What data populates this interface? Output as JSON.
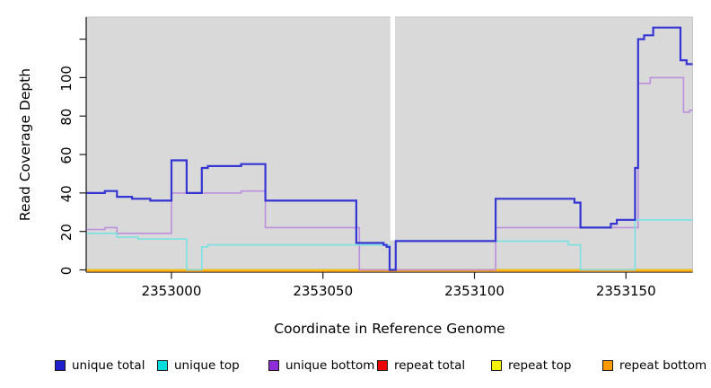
{
  "chart_data": {
    "type": "line",
    "subtype": "step-coverage",
    "title": "",
    "xlabel": "Coordinate in Reference Genome",
    "ylabel": "Read Coverage Depth",
    "xlim": [
      2352972,
      2353172
    ],
    "ylim": [
      0,
      131
    ],
    "grid": false,
    "plot_bg": "#d9d9d9",
    "legend_position": "bottom",
    "no_data_gap": {
      "from": 2353072,
      "to": 2353074
    },
    "xticks": [
      {
        "v": 2353000,
        "label": "2353000"
      },
      {
        "v": 2353050,
        "label": "2353050"
      },
      {
        "v": 2353100,
        "label": "2353100"
      },
      {
        "v": 2353150,
        "label": "2353150"
      }
    ],
    "yticks": [
      {
        "v": 0,
        "label": "0"
      },
      {
        "v": 20,
        "label": "20"
      },
      {
        "v": 40,
        "label": "40"
      },
      {
        "v": 60,
        "label": "60"
      },
      {
        "v": 80,
        "label": "80"
      },
      {
        "v": 100,
        "label": "100"
      },
      {
        "v": 120,
        "label": ""
      }
    ],
    "series": [
      {
        "name": "unique total",
        "line_color": "#3535d3",
        "legend_color": "#1f1fce",
        "line_width": 2.2,
        "points": [
          [
            2352972,
            40
          ],
          [
            2352978,
            41
          ],
          [
            2352982,
            38
          ],
          [
            2352987,
            37
          ],
          [
            2352993,
            36
          ],
          [
            2353000,
            57
          ],
          [
            2353005,
            40
          ],
          [
            2353010,
            53
          ],
          [
            2353012,
            54
          ],
          [
            2353023,
            55
          ],
          [
            2353031,
            36
          ],
          [
            2353061,
            14
          ],
          [
            2353070,
            13
          ],
          [
            2353071,
            12
          ],
          [
            2353072,
            0
          ],
          [
            2353074,
            15
          ],
          [
            2353107,
            37
          ],
          [
            2353133,
            35
          ],
          [
            2353135,
            22
          ],
          [
            2353145,
            24
          ],
          [
            2353147,
            26
          ],
          [
            2353153,
            53
          ],
          [
            2353154,
            120
          ],
          [
            2353156,
            122
          ],
          [
            2353159,
            126
          ],
          [
            2353168,
            109
          ],
          [
            2353170,
            107
          ]
        ]
      },
      {
        "name": "unique top",
        "line_color": "#7ae2e2",
        "legend_color": "#00dcdc",
        "line_width": 1.6,
        "points": [
          [
            2352972,
            19
          ],
          [
            2352982,
            17
          ],
          [
            2352989,
            16
          ],
          [
            2353005,
            0
          ],
          [
            2353010,
            12
          ],
          [
            2353012,
            13
          ],
          [
            2353072,
            0
          ],
          [
            2353074,
            15
          ],
          [
            2353131,
            13
          ],
          [
            2353135,
            0
          ],
          [
            2353153,
            26
          ]
        ]
      },
      {
        "name": "unique bottom",
        "line_color": "#bd8fdd",
        "legend_color": "#8d2ed8",
        "line_width": 1.6,
        "points": [
          [
            2352972,
            21
          ],
          [
            2352978,
            22
          ],
          [
            2352982,
            19
          ],
          [
            2353000,
            40
          ],
          [
            2353023,
            41
          ],
          [
            2353031,
            22
          ],
          [
            2353062,
            0
          ],
          [
            2353107,
            22
          ],
          [
            2353154,
            97
          ],
          [
            2353158,
            100
          ],
          [
            2353169,
            82
          ],
          [
            2353171,
            83
          ]
        ]
      },
      {
        "name": "repeat total",
        "line_color": "#cc0000",
        "legend_color": "#ee0000",
        "line_width": 1.5,
        "points": [
          [
            2352972,
            0
          ]
        ]
      },
      {
        "name": "repeat top",
        "line_color": "#e8e800",
        "legend_color": "#f2f200",
        "line_width": 1.5,
        "points": [
          [
            2352972,
            0
          ]
        ]
      },
      {
        "name": "repeat bottom",
        "line_color": "#ff9e1d",
        "legend_color": "#ff9900",
        "line_width": 2,
        "points": [
          [
            2352972,
            0
          ]
        ]
      }
    ]
  }
}
